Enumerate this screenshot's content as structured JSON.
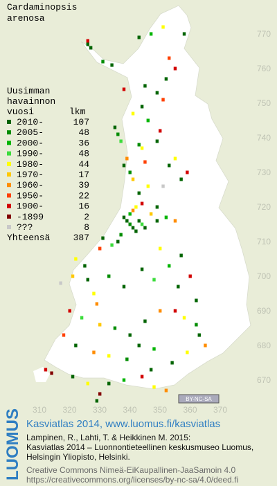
{
  "map": {
    "title_lines": [
      "Cardaminopsis",
      "arenosa"
    ],
    "legend_header": [
      "Uusimman",
      "havainnon",
      "vuosi"
    ],
    "count_header": "lkm",
    "legend": [
      {
        "label": "2010-",
        "count": 107,
        "color": "#006400"
      },
      {
        "label": "2005-",
        "count": 48,
        "color": "#008c00"
      },
      {
        "label": "2000-",
        "count": 36,
        "color": "#00b400"
      },
      {
        "label": "1990-",
        "count": 48,
        "color": "#3cdc3c"
      },
      {
        "label": "1980-",
        "count": 44,
        "color": "#ffff00"
      },
      {
        "label": "1970-",
        "count": 17,
        "color": "#ffc800"
      },
      {
        "label": "1960-",
        "count": 39,
        "color": "#ff8c00"
      },
      {
        "label": "1950-",
        "count": 22,
        "color": "#ff4000"
      },
      {
        "label": "1900-",
        "count": 16,
        "color": "#d20000"
      },
      {
        "label": "-1899",
        "count": 2,
        "color": "#820000"
      },
      {
        "label": "???",
        "count": 8,
        "color": "#c8c8c8"
      }
    ],
    "total_label": "Yhteensä",
    "total": 387,
    "xticks": [
      310,
      320,
      330,
      340,
      350,
      360,
      370
    ],
    "yticks": [
      670,
      680,
      690,
      700,
      710,
      720,
      730,
      740,
      750,
      760,
      770
    ],
    "points": [
      [
        326,
        768,
        8
      ],
      [
        327,
        766,
        0
      ],
      [
        326,
        767,
        0
      ],
      [
        331,
        762,
        1
      ],
      [
        334,
        761,
        0
      ],
      [
        343,
        769,
        0
      ],
      [
        351,
        772,
        4
      ],
      [
        353,
        763,
        7
      ],
      [
        355,
        760,
        8
      ],
      [
        347,
        770,
        2
      ],
      [
        338,
        754,
        8
      ],
      [
        345,
        755,
        0
      ],
      [
        344,
        749,
        0
      ],
      [
        341,
        747,
        4
      ],
      [
        346,
        745,
        2
      ],
      [
        351,
        751,
        7
      ],
      [
        349,
        753,
        0
      ],
      [
        358,
        770,
        0
      ],
      [
        352,
        757,
        0
      ],
      [
        335,
        743,
        0
      ],
      [
        336,
        741,
        1
      ],
      [
        337,
        739,
        3
      ],
      [
        343,
        738,
        1
      ],
      [
        344,
        737,
        4
      ],
      [
        349,
        739,
        0
      ],
      [
        350,
        742,
        8
      ],
      [
        339,
        734,
        6
      ],
      [
        338,
        732,
        0
      ],
      [
        340,
        730,
        1
      ],
      [
        341,
        728,
        5
      ],
      [
        345,
        733,
        7
      ],
      [
        353,
        732,
        0
      ],
      [
        355,
        734,
        4
      ],
      [
        357,
        728,
        0
      ],
      [
        359,
        730,
        8
      ],
      [
        346,
        726,
        4
      ],
      [
        343,
        724,
        0
      ],
      [
        351,
        726,
        10
      ],
      [
        338,
        717,
        0
      ],
      [
        339,
        716,
        0
      ],
      [
        340,
        715,
        1
      ],
      [
        341,
        714,
        0
      ],
      [
        342,
        713,
        0
      ],
      [
        340,
        718,
        2
      ],
      [
        343,
        716,
        0
      ],
      [
        344,
        715,
        3
      ],
      [
        345,
        714,
        0
      ],
      [
        341,
        719,
        6
      ],
      [
        342,
        720,
        4
      ],
      [
        344,
        721,
        8
      ],
      [
        347,
        718,
        5
      ],
      [
        349,
        716,
        0
      ],
      [
        352,
        717,
        2
      ],
      [
        337,
        712,
        1
      ],
      [
        336,
        710,
        0
      ],
      [
        334,
        709,
        3
      ],
      [
        331,
        711,
        0
      ],
      [
        330,
        708,
        7
      ],
      [
        349,
        720,
        0
      ],
      [
        355,
        716,
        6
      ],
      [
        322,
        705,
        4
      ],
      [
        325,
        703,
        0
      ],
      [
        321,
        700,
        5
      ],
      [
        317,
        698,
        10
      ],
      [
        326,
        699,
        0
      ],
      [
        328,
        695,
        4
      ],
      [
        329,
        692,
        6
      ],
      [
        333,
        700,
        1
      ],
      [
        338,
        697,
        0
      ],
      [
        344,
        702,
        0
      ],
      [
        348,
        699,
        3
      ],
      [
        353,
        703,
        2
      ],
      [
        356,
        697,
        0
      ],
      [
        360,
        700,
        8
      ],
      [
        357,
        706,
        0
      ],
      [
        350,
        708,
        4
      ],
      [
        320,
        690,
        8
      ],
      [
        324,
        688,
        3
      ],
      [
        330,
        686,
        5
      ],
      [
        335,
        685,
        1
      ],
      [
        340,
        683,
        0
      ],
      [
        345,
        687,
        0
      ],
      [
        350,
        690,
        6
      ],
      [
        355,
        690,
        8
      ],
      [
        358,
        688,
        4
      ],
      [
        362,
        693,
        0
      ],
      [
        318,
        683,
        7
      ],
      [
        322,
        680,
        0
      ],
      [
        328,
        678,
        6
      ],
      [
        333,
        677,
        4
      ],
      [
        339,
        676,
        1
      ],
      [
        343,
        680,
        0
      ],
      [
        348,
        679,
        2
      ],
      [
        354,
        675,
        0
      ],
      [
        359,
        678,
        4
      ],
      [
        363,
        683,
        0
      ],
      [
        365,
        680,
        6
      ],
      [
        362,
        686,
        1
      ],
      [
        312,
        673,
        8
      ],
      [
        314,
        672,
        9
      ],
      [
        321,
        671,
        0
      ],
      [
        326,
        669,
        4
      ],
      [
        330,
        666,
        9
      ],
      [
        333,
        669,
        0
      ],
      [
        338,
        670,
        2
      ],
      [
        344,
        671,
        8
      ],
      [
        348,
        668,
        4
      ],
      [
        352,
        667,
        6
      ],
      [
        347,
        673,
        0
      ],
      [
        329,
        664,
        0
      ]
    ],
    "license_badge": "BY-NC-SA"
  },
  "footer": {
    "logo": "LUOMUS",
    "headline": "Kasviatlas 2014, www.luomus.fi/kasviatlas",
    "citation": [
      "Lampinen, R., Lahti, T. & Heikkinen M. 2015:",
      "Kasviatlas 2014 – Luonnontieteellinen keskusmuseo Luomus,",
      "Helsingin Yliopisto, Helsinki."
    ],
    "license": [
      "Creative Commons Nimeä-EiKaupallinen-JaaSamoin 4.0",
      "https://creativecommons.org/licenses/by-nc-sa/4.0/deed.fi"
    ]
  }
}
